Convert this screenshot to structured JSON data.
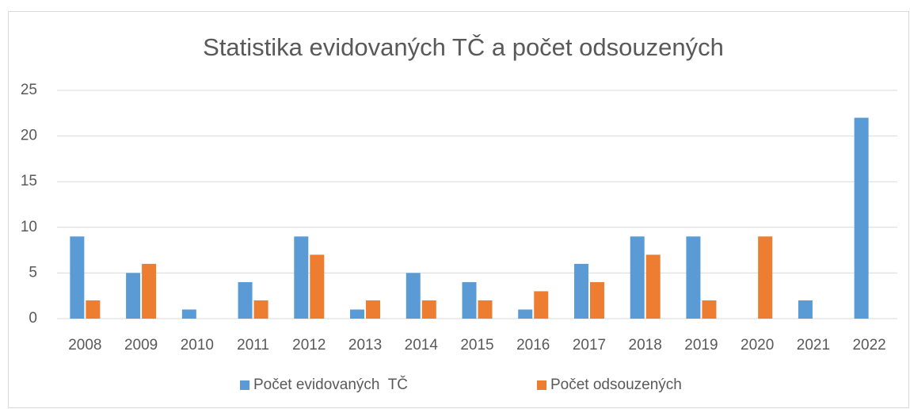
{
  "chart_data": {
    "type": "bar",
    "title": "Statistika evidovaných TČ a počet odsouzených",
    "categories": [
      "2008",
      "2009",
      "2010",
      "2011",
      "2012",
      "2013",
      "2014",
      "2015",
      "2016",
      "2017",
      "2018",
      "2019",
      "2020",
      "2021",
      "2022"
    ],
    "series": [
      {
        "name": "Počet evidovaných  TČ",
        "color": "#5b9bd5",
        "values": [
          9,
          5,
          1,
          4,
          9,
          1,
          5,
          4,
          1,
          6,
          9,
          9,
          0,
          2,
          22
        ]
      },
      {
        "name": "Počet odsouzených",
        "color": "#ed7d31",
        "values": [
          2,
          6,
          0,
          2,
          7,
          2,
          2,
          2,
          3,
          4,
          7,
          2,
          9,
          0,
          0
        ]
      }
    ],
    "ylim": [
      0,
      25
    ],
    "yticks": [
      0,
      5,
      10,
      15,
      20,
      25
    ],
    "grid": true,
    "legend": "bottom"
  }
}
